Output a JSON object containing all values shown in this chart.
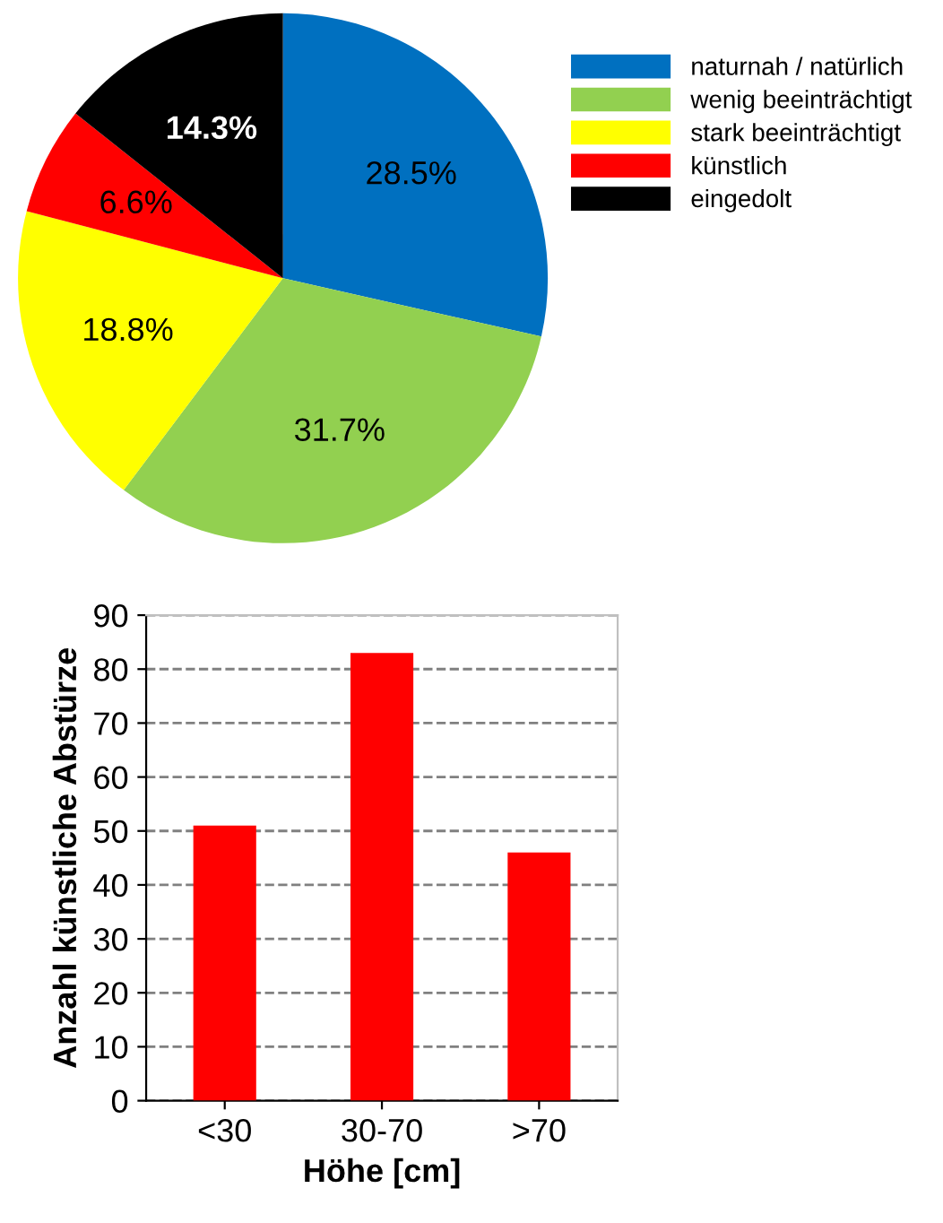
{
  "chart_data": [
    {
      "type": "pie",
      "categories": [
        "naturnah / natürlich",
        "wenig beeinträchtigt",
        "stark beeinträchtigt",
        "künstlich",
        "eingedolt"
      ],
      "values": [
        28.5,
        31.7,
        18.8,
        6.6,
        14.3
      ],
      "colors": [
        "#0070c0",
        "#92d050",
        "#ffff00",
        "#ff0000",
        "#000000"
      ],
      "value_labels": [
        "28.5%",
        "31.7%",
        "18.8%",
        "6.6%",
        "14.3%"
      ],
      "legend": "right"
    },
    {
      "type": "bar",
      "categories": [
        "<30",
        "30-70",
        ">70"
      ],
      "values": [
        51,
        83,
        46
      ],
      "color": "#ff0000",
      "xlabel": "Höhe [cm]",
      "ylabel": "Anzahl künstliche Abstürze",
      "ylim": [
        0,
        90
      ],
      "yticks": [
        0,
        10,
        20,
        30,
        40,
        50,
        60,
        70,
        80,
        90
      ],
      "grid": "y",
      "line_style": "dashed"
    }
  ]
}
